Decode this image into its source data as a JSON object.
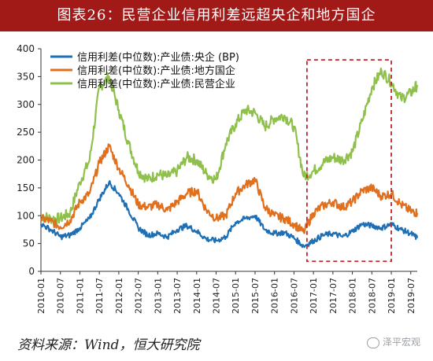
{
  "title": "图表26：民营企业信用利差远超央企和地方国企",
  "source": "资料来源：Wind，恒大研究院",
  "watermark": "泽平宏观",
  "watermark_icon": "wechat-icon",
  "colors": {
    "title_bg": "#a11a18",
    "series": [
      "#1f6fb5",
      "#e0701e",
      "#8ec04b"
    ],
    "highlight_box": "#c0262a"
  },
  "chart_data": {
    "type": "line",
    "title": "",
    "xlabel": "",
    "ylabel": "",
    "ylim": [
      0,
      400
    ],
    "yticks": [
      0,
      50,
      100,
      150,
      200,
      250,
      300,
      350,
      400
    ],
    "xlim": [
      "2010-01",
      "2019-09"
    ],
    "xticks": [
      "2010-01",
      "2010-07",
      "2011-01",
      "2011-07",
      "2012-01",
      "2012-07",
      "2013-01",
      "2013-07",
      "2014-01",
      "2014-07",
      "2015-01",
      "2015-07",
      "2016-01",
      "2016-07",
      "2017-01",
      "2017-07",
      "2018-01",
      "2018-07",
      "2019-01",
      "2019-07"
    ],
    "grid": false,
    "legend_position": "top-left",
    "highlight_range": [
      "2016-11",
      "2019-01"
    ],
    "series": [
      {
        "name": "信用利差(中位数):产业债:央企 (BP)",
        "x": [
          "2010-01",
          "2010-04",
          "2010-07",
          "2010-10",
          "2011-01",
          "2011-04",
          "2011-07",
          "2011-10",
          "2012-01",
          "2012-04",
          "2012-07",
          "2012-10",
          "2013-01",
          "2013-04",
          "2013-07",
          "2013-10",
          "2014-01",
          "2014-04",
          "2014-07",
          "2014-10",
          "2015-01",
          "2015-04",
          "2015-07",
          "2015-10",
          "2016-01",
          "2016-04",
          "2016-07",
          "2016-10",
          "2017-01",
          "2017-04",
          "2017-07",
          "2017-10",
          "2018-01",
          "2018-04",
          "2018-07",
          "2018-10",
          "2019-01",
          "2019-04",
          "2019-07",
          "2019-09"
        ],
        "values": [
          85,
          75,
          62,
          65,
          78,
          95,
          130,
          160,
          140,
          110,
          78,
          65,
          68,
          62,
          75,
          82,
          72,
          58,
          55,
          62,
          88,
          95,
          100,
          75,
          68,
          70,
          60,
          45,
          55,
          65,
          68,
          62,
          72,
          85,
          82,
          78,
          85,
          75,
          68,
          60
        ]
      },
      {
        "name": "信用利差(中位数):产业债:地方国企",
        "x": [
          "2010-01",
          "2010-04",
          "2010-07",
          "2010-10",
          "2011-01",
          "2011-04",
          "2011-07",
          "2011-10",
          "2012-01",
          "2012-04",
          "2012-07",
          "2012-10",
          "2013-01",
          "2013-04",
          "2013-07",
          "2013-10",
          "2014-01",
          "2014-04",
          "2014-07",
          "2014-10",
          "2015-01",
          "2015-04",
          "2015-07",
          "2015-10",
          "2016-01",
          "2016-04",
          "2016-07",
          "2016-10",
          "2017-01",
          "2017-04",
          "2017-07",
          "2017-10",
          "2018-01",
          "2018-04",
          "2018-07",
          "2018-10",
          "2019-01",
          "2019-04",
          "2019-07",
          "2019-09"
        ],
        "values": [
          95,
          90,
          80,
          92,
          125,
          140,
          195,
          225,
          185,
          155,
          120,
          115,
          120,
          110,
          125,
          140,
          145,
          110,
          95,
          100,
          140,
          155,
          165,
          115,
          100,
          95,
          85,
          70,
          105,
          118,
          125,
          115,
          125,
          145,
          150,
          135,
          140,
          120,
          108,
          105
        ]
      },
      {
        "name": "信用利差(中位数):产业债:民营企业",
        "x": [
          "2010-01",
          "2010-04",
          "2010-07",
          "2010-10",
          "2011-01",
          "2011-04",
          "2011-07",
          "2011-10",
          "2012-01",
          "2012-04",
          "2012-07",
          "2012-10",
          "2013-01",
          "2013-04",
          "2013-07",
          "2013-10",
          "2014-01",
          "2014-04",
          "2014-07",
          "2014-10",
          "2015-01",
          "2015-04",
          "2015-07",
          "2015-10",
          "2016-01",
          "2016-04",
          "2016-07",
          "2016-10",
          "2017-01",
          "2017-04",
          "2017-07",
          "2017-10",
          "2018-01",
          "2018-04",
          "2018-07",
          "2018-10",
          "2019-01",
          "2019-04",
          "2019-07",
          "2019-09"
        ],
        "values": [
          100,
          95,
          95,
          105,
          160,
          200,
          330,
          350,
          290,
          230,
          180,
          165,
          175,
          170,
          180,
          205,
          200,
          175,
          165,
          230,
          265,
          290,
          285,
          260,
          275,
          280,
          260,
          170,
          180,
          195,
          205,
          200,
          215,
          270,
          330,
          360,
          340,
          310,
          320,
          335
        ]
      }
    ]
  }
}
